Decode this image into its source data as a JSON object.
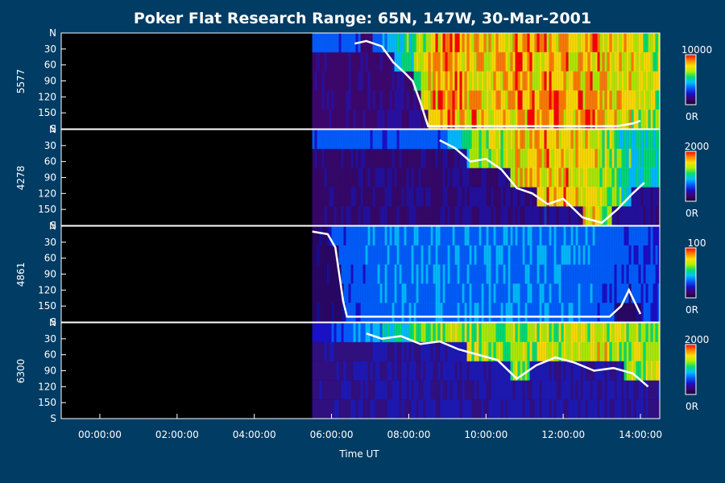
{
  "chart_data": {
    "type": "heatmap",
    "title": "Poker Flat Research Range: 65N, 147W, 30-Mar-2001",
    "xlabel": "Time UT",
    "x_ticks": [
      "00:00:00",
      "02:00:00",
      "04:00:00",
      "06:00:00",
      "08:00:00",
      "10:00:00",
      "12:00:00",
      "14:00:00"
    ],
    "x_range_hours": [
      -1.0,
      14.5
    ],
    "y_ticks": [
      "N",
      "30",
      "60",
      "90",
      "120",
      "150",
      "S"
    ],
    "y_range_deg": [
      0,
      180
    ],
    "data_start_hour": 5.5,
    "colorscale": [
      "#1a0030",
      "#3c0070",
      "#1a10c8",
      "#0060ff",
      "#00c0ff",
      "#00e070",
      "#b0f000",
      "#ffe000",
      "#ff8000",
      "#ff0000"
    ],
    "panels": [
      {
        "name": "5577",
        "colorbar_max": "10000",
        "colorbar_min": "0R",
        "tint_rgb": [
          70,
          20,
          120
        ],
        "bright": [
          [
            7.0,
            0.35
          ],
          [
            7.6,
            0.45
          ],
          [
            8.0,
            0.6
          ],
          [
            8.5,
            0.85
          ],
          [
            9.0,
            0.95
          ],
          [
            10.0,
            0.85
          ],
          [
            11.0,
            0.95
          ],
          [
            12.0,
            0.9
          ],
          [
            13.0,
            0.9
          ],
          [
            14.0,
            0.75
          ]
        ],
        "contour": [
          [
            6.6,
            20
          ],
          [
            6.9,
            15
          ],
          [
            7.3,
            25
          ],
          [
            7.6,
            55
          ],
          [
            7.9,
            75
          ],
          [
            8.1,
            90
          ],
          [
            8.3,
            130
          ],
          [
            8.5,
            175
          ],
          [
            9.5,
            175
          ],
          [
            10.5,
            175
          ],
          [
            11.5,
            175
          ],
          [
            12.5,
            175
          ],
          [
            13.4,
            175
          ],
          [
            13.8,
            170
          ],
          [
            14.0,
            165
          ]
        ]
      },
      {
        "name": "4278",
        "colorbar_max": "2000",
        "colorbar_min": "0R",
        "tint_rgb": [
          50,
          20,
          110
        ],
        "bright": [
          [
            8.8,
            0.35
          ],
          [
            9.3,
            0.55
          ],
          [
            10.0,
            0.7
          ],
          [
            10.8,
            0.85
          ],
          [
            11.5,
            0.9
          ],
          [
            12.3,
            0.85
          ],
          [
            13.0,
            0.75
          ],
          [
            13.8,
            0.55
          ]
        ],
        "contour": [
          [
            8.8,
            20
          ],
          [
            9.2,
            35
          ],
          [
            9.6,
            60
          ],
          [
            10.0,
            55
          ],
          [
            10.4,
            75
          ],
          [
            10.8,
            110
          ],
          [
            11.2,
            120
          ],
          [
            11.6,
            140
          ],
          [
            12.0,
            130
          ],
          [
            12.5,
            165
          ],
          [
            13.0,
            175
          ],
          [
            13.4,
            150
          ],
          [
            13.8,
            120
          ],
          [
            14.1,
            100
          ]
        ]
      },
      {
        "name": "4861",
        "colorbar_max": "100",
        "colorbar_min": "0R",
        "tint_rgb": [
          20,
          20,
          100
        ],
        "bright": [
          [
            5.6,
            0.3
          ],
          [
            6.5,
            0.35
          ],
          [
            8.0,
            0.4
          ],
          [
            10.0,
            0.4
          ],
          [
            12.0,
            0.4
          ],
          [
            13.0,
            0.35
          ],
          [
            14.0,
            0.3
          ]
        ],
        "contour": [
          [
            5.5,
            10
          ],
          [
            5.9,
            15
          ],
          [
            6.1,
            40
          ],
          [
            6.2,
            90
          ],
          [
            6.3,
            140
          ],
          [
            6.4,
            170
          ],
          [
            13.2,
            170
          ],
          [
            13.5,
            150
          ],
          [
            13.7,
            120
          ],
          [
            14.0,
            165
          ]
        ]
      },
      {
        "name": "6300",
        "colorbar_max": "2000",
        "colorbar_min": "0R",
        "tint_rgb": [
          40,
          40,
          170
        ],
        "bright": [
          [
            5.5,
            0.25
          ],
          [
            7.0,
            0.45
          ],
          [
            8.5,
            0.7
          ],
          [
            10.0,
            0.75
          ],
          [
            11.0,
            0.7
          ],
          [
            12.0,
            0.75
          ],
          [
            13.0,
            0.8
          ],
          [
            14.0,
            0.7
          ]
        ],
        "contour": [
          [
            6.9,
            20
          ],
          [
            7.3,
            30
          ],
          [
            7.8,
            25
          ],
          [
            8.3,
            40
          ],
          [
            8.8,
            35
          ],
          [
            9.3,
            50
          ],
          [
            9.8,
            60
          ],
          [
            10.3,
            70
          ],
          [
            10.8,
            105
          ],
          [
            11.3,
            80
          ],
          [
            11.8,
            65
          ],
          [
            12.3,
            75
          ],
          [
            12.8,
            90
          ],
          [
            13.3,
            85
          ],
          [
            13.8,
            95
          ],
          [
            14.2,
            120
          ]
        ]
      }
    ]
  }
}
